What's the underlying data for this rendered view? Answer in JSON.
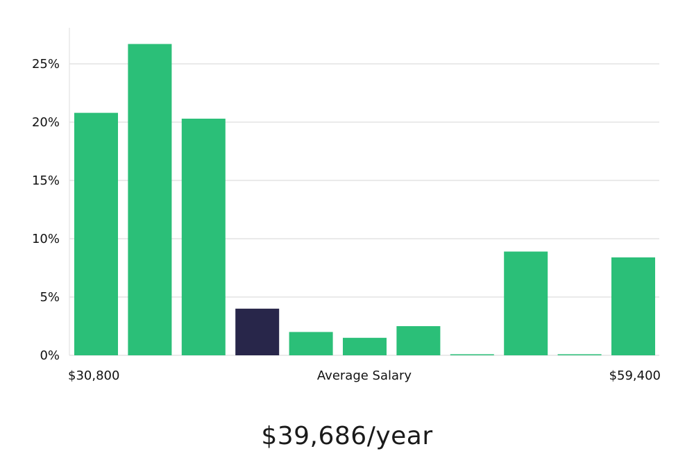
{
  "chart_data": {
    "type": "bar",
    "xlabel": "Average Salary",
    "x_range_labels": [
      "$30,800",
      "$59,400"
    ],
    "bins": 11,
    "values": [
      20.8,
      26.7,
      20.3,
      4.0,
      2.0,
      1.5,
      2.5,
      0.05,
      8.9,
      0.05,
      8.4
    ],
    "highlight_index": 3,
    "ylim": [
      0,
      28
    ],
    "yticks": [
      0,
      5,
      10,
      15,
      20,
      25
    ],
    "ytick_labels": [
      "0%",
      "5%",
      "10%",
      "15%",
      "20%",
      "25%"
    ],
    "grid": true,
    "colors": {
      "bar": "#2bbf78",
      "highlight": "#28264a",
      "grid": "#e3e3e3",
      "axis": "#dddddd"
    }
  },
  "summary": {
    "value": "$39,686/year"
  }
}
